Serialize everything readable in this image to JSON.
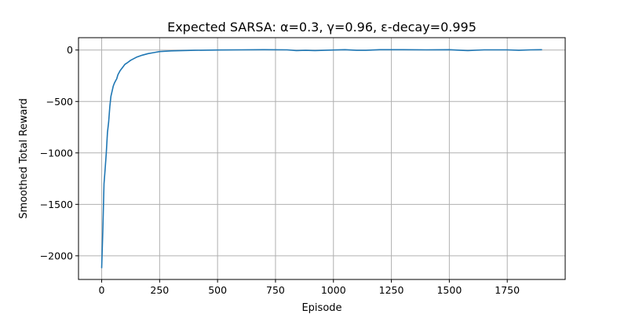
{
  "chart_data": {
    "type": "line",
    "title": "Expected SARSA: α=0.3, γ=0.96, ε-decay=0.995",
    "xlabel": "Episode",
    "ylabel": "Smoothed Total Reward",
    "xlim": [
      -100,
      2000
    ],
    "ylim": [
      -2230,
      120
    ],
    "grid": true,
    "xticks": [
      0,
      250,
      500,
      750,
      1000,
      1250,
      1500,
      1750
    ],
    "xtick_labels": [
      "0",
      "250",
      "500",
      "750",
      "1000",
      "1250",
      "1500",
      "1750"
    ],
    "yticks": [
      0,
      -500,
      -1000,
      -1500,
      -2000
    ],
    "ytick_labels": [
      "0",
      "−500",
      "−1000",
      "−1500",
      "−2000"
    ],
    "series": [
      {
        "color": "#1f77b4",
        "x": [
          0,
          5,
          10,
          15,
          20,
          25,
          30,
          35,
          40,
          45,
          50,
          55,
          60,
          65,
          70,
          80,
          90,
          100,
          110,
          125,
          150,
          175,
          200,
          225,
          250,
          300,
          350,
          400,
          500,
          600,
          700,
          800,
          840,
          880,
          920,
          960,
          1000,
          1050,
          1100,
          1140,
          1200,
          1300,
          1400,
          1500,
          1550,
          1580,
          1650,
          1750,
          1800,
          1850,
          1900
        ],
        "y": [
          -2120,
          -1750,
          -1300,
          -1150,
          -1000,
          -800,
          -700,
          -550,
          -450,
          -400,
          -350,
          -320,
          -300,
          -280,
          -240,
          -200,
          -170,
          -140,
          -125,
          -100,
          -70,
          -50,
          -35,
          -25,
          -15,
          -8,
          -5,
          -3,
          0,
          2,
          3,
          2,
          -5,
          -3,
          -5,
          -3,
          0,
          3,
          -3,
          -3,
          3,
          3,
          2,
          3,
          -3,
          -5,
          2,
          2,
          -3,
          2,
          3
        ]
      }
    ]
  }
}
